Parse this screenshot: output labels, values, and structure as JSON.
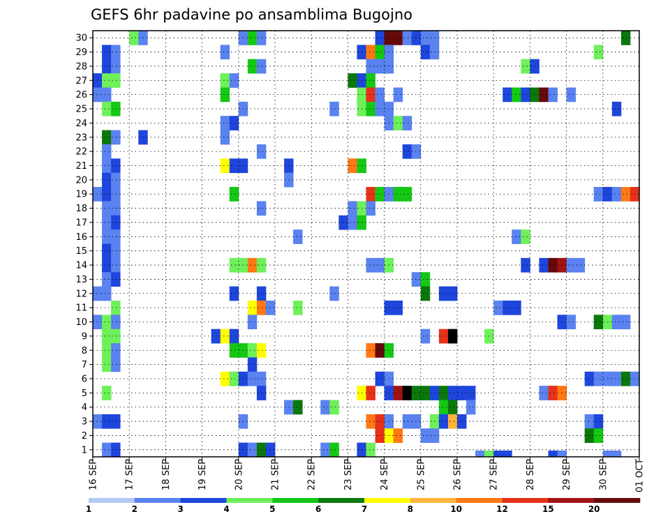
{
  "chart_data": {
    "type": "heatmap",
    "title": "GEFS 6hr padavine po ansamblima Bugojno",
    "xlabel": "",
    "ylabel": "",
    "x_ticks": [
      "16 SEP",
      "17 SEP",
      "18 SEP",
      "19 SEP",
      "20 SEP",
      "21 SEP",
      "22 SEP",
      "23 SEP",
      "24 SEP",
      "25 SEP",
      "26 SEP",
      "27 SEP",
      "28 SEP",
      "29 SEP",
      "30 SEP",
      "01 OCT"
    ],
    "y_ticks": [
      1,
      2,
      3,
      4,
      5,
      6,
      7,
      8,
      9,
      10,
      11,
      12,
      13,
      14,
      15,
      16,
      17,
      18,
      19,
      20,
      21,
      22,
      23,
      24,
      25,
      26,
      27,
      28,
      29,
      30
    ],
    "time_steps_per_day": 4,
    "members": 30,
    "grid": true,
    "colorbar": {
      "bounds": [
        1,
        2,
        3,
        4,
        5,
        6,
        7,
        8,
        10,
        12,
        15,
        20
      ],
      "labels": [
        "1",
        "2",
        "3",
        "4",
        "5",
        "6",
        "7",
        "8",
        "10",
        "12",
        "15",
        "20"
      ],
      "colors": [
        "#b4c8f5",
        "#5a82f0",
        "#1e46dc",
        "#6ef05a",
        "#14c814",
        "#0a780a",
        "#ffff00",
        "#ffb43c",
        "#ff7814",
        "#e63219",
        "#a01414",
        "#640a0a"
      ]
    },
    "cells": [
      [
        30,
        4,
        3
      ],
      [
        30,
        5,
        1
      ],
      [
        30,
        16,
        1
      ],
      [
        30,
        17,
        4
      ],
      [
        30,
        18,
        1
      ],
      [
        30,
        31,
        2
      ],
      [
        30,
        32,
        11
      ],
      [
        30,
        33,
        11
      ],
      [
        30,
        34,
        1
      ],
      [
        30,
        35,
        2
      ],
      [
        30,
        36,
        1
      ],
      [
        30,
        37,
        1
      ],
      [
        30,
        58,
        5
      ],
      [
        29,
        1,
        2
      ],
      [
        29,
        2,
        1
      ],
      [
        29,
        14,
        1
      ],
      [
        29,
        29,
        2
      ],
      [
        29,
        30,
        8
      ],
      [
        29,
        31,
        4
      ],
      [
        29,
        32,
        1
      ],
      [
        29,
        36,
        2
      ],
      [
        29,
        37,
        1
      ],
      [
        29,
        55,
        3
      ],
      [
        28,
        1,
        2
      ],
      [
        28,
        2,
        1
      ],
      [
        28,
        17,
        4
      ],
      [
        28,
        18,
        1
      ],
      [
        28,
        30,
        1
      ],
      [
        28,
        31,
        1
      ],
      [
        28,
        32,
        1
      ],
      [
        28,
        47,
        3
      ],
      [
        28,
        48,
        2
      ],
      [
        27,
        0,
        2
      ],
      [
        27,
        1,
        3
      ],
      [
        27,
        2,
        3
      ],
      [
        27,
        14,
        3
      ],
      [
        27,
        15,
        1
      ],
      [
        27,
        28,
        5
      ],
      [
        27,
        29,
        2
      ],
      [
        27,
        30,
        4
      ],
      [
        26,
        0,
        1
      ],
      [
        26,
        1,
        1
      ],
      [
        26,
        14,
        4
      ],
      [
        26,
        29,
        3
      ],
      [
        26,
        30,
        9
      ],
      [
        26,
        31,
        1
      ],
      [
        26,
        33,
        1
      ],
      [
        26,
        45,
        2
      ],
      [
        26,
        46,
        4
      ],
      [
        26,
        47,
        2
      ],
      [
        26,
        48,
        5
      ],
      [
        26,
        49,
        11
      ],
      [
        26,
        50,
        1
      ],
      [
        26,
        52,
        1
      ],
      [
        25,
        1,
        3
      ],
      [
        25,
        2,
        4
      ],
      [
        25,
        16,
        1
      ],
      [
        25,
        26,
        1
      ],
      [
        25,
        29,
        3
      ],
      [
        25,
        30,
        4
      ],
      [
        25,
        31,
        1
      ],
      [
        25,
        32,
        1
      ],
      [
        25,
        57,
        2
      ],
      [
        24,
        14,
        1
      ],
      [
        24,
        15,
        2
      ],
      [
        24,
        32,
        1
      ],
      [
        24,
        33,
        3
      ],
      [
        24,
        34,
        1
      ],
      [
        23,
        1,
        5
      ],
      [
        23,
        2,
        1
      ],
      [
        23,
        5,
        2
      ],
      [
        23,
        14,
        1
      ],
      [
        22,
        1,
        1
      ],
      [
        22,
        18,
        1
      ],
      [
        22,
        34,
        2
      ],
      [
        22,
        35,
        1
      ],
      [
        21,
        1,
        1
      ],
      [
        21,
        2,
        2
      ],
      [
        21,
        14,
        6
      ],
      [
        21,
        15,
        2
      ],
      [
        21,
        16,
        2
      ],
      [
        21,
        21,
        2
      ],
      [
        21,
        28,
        8
      ],
      [
        21,
        29,
        4
      ],
      [
        20,
        1,
        2
      ],
      [
        20,
        2,
        1
      ],
      [
        20,
        21,
        1
      ],
      [
        19,
        0,
        1
      ],
      [
        19,
        1,
        2
      ],
      [
        19,
        2,
        1
      ],
      [
        19,
        15,
        4
      ],
      [
        19,
        30,
        9
      ],
      [
        19,
        31,
        4
      ],
      [
        19,
        32,
        1
      ],
      [
        19,
        33,
        4
      ],
      [
        19,
        34,
        4
      ],
      [
        19,
        55,
        1
      ],
      [
        19,
        56,
        2
      ],
      [
        19,
        57,
        1
      ],
      [
        19,
        58,
        8
      ],
      [
        19,
        59,
        9
      ],
      [
        18,
        1,
        1
      ],
      [
        18,
        2,
        1
      ],
      [
        18,
        18,
        1
      ],
      [
        18,
        28,
        1
      ],
      [
        18,
        29,
        3
      ],
      [
        18,
        30,
        1
      ],
      [
        17,
        1,
        1
      ],
      [
        17,
        2,
        2
      ],
      [
        17,
        27,
        2
      ],
      [
        17,
        28,
        1
      ],
      [
        17,
        29,
        4
      ],
      [
        16,
        1,
        1
      ],
      [
        16,
        2,
        1
      ],
      [
        16,
        22,
        1
      ],
      [
        16,
        46,
        1
      ],
      [
        16,
        47,
        3
      ],
      [
        15,
        1,
        2
      ],
      [
        15,
        2,
        1
      ],
      [
        14,
        1,
        2
      ],
      [
        14,
        2,
        1
      ],
      [
        14,
        15,
        3
      ],
      [
        14,
        16,
        3
      ],
      [
        14,
        17,
        8
      ],
      [
        14,
        18,
        3
      ],
      [
        14,
        30,
        1
      ],
      [
        14,
        31,
        1
      ],
      [
        14,
        32,
        3
      ],
      [
        14,
        47,
        2
      ],
      [
        14,
        49,
        2
      ],
      [
        14,
        50,
        11
      ],
      [
        14,
        51,
        10
      ],
      [
        14,
        52,
        1
      ],
      [
        14,
        53,
        1
      ],
      [
        13,
        1,
        1
      ],
      [
        13,
        2,
        2
      ],
      [
        13,
        35,
        1
      ],
      [
        13,
        36,
        4
      ],
      [
        12,
        0,
        1
      ],
      [
        12,
        1,
        1
      ],
      [
        12,
        15,
        2
      ],
      [
        12,
        18,
        2
      ],
      [
        12,
        26,
        1
      ],
      [
        12,
        36,
        5
      ],
      [
        12,
        38,
        2
      ],
      [
        12,
        39,
        2
      ],
      [
        11,
        2,
        3
      ],
      [
        11,
        17,
        6
      ],
      [
        11,
        18,
        8
      ],
      [
        11,
        19,
        1
      ],
      [
        11,
        22,
        3
      ],
      [
        11,
        32,
        2
      ],
      [
        11,
        33,
        2
      ],
      [
        11,
        44,
        1
      ],
      [
        11,
        45,
        2
      ],
      [
        11,
        46,
        2
      ],
      [
        10,
        0,
        1
      ],
      [
        10,
        1,
        3
      ],
      [
        10,
        2,
        1
      ],
      [
        10,
        17,
        1
      ],
      [
        10,
        51,
        2
      ],
      [
        10,
        52,
        1
      ],
      [
        10,
        55,
        5
      ],
      [
        10,
        56,
        3
      ],
      [
        10,
        57,
        1
      ],
      [
        10,
        58,
        1
      ],
      [
        9,
        1,
        3
      ],
      [
        9,
        2,
        3
      ],
      [
        9,
        13,
        2
      ],
      [
        9,
        14,
        6
      ],
      [
        9,
        15,
        2
      ],
      [
        9,
        36,
        1
      ],
      [
        9,
        38,
        9
      ],
      [
        9,
        39,
        12
      ],
      [
        9,
        43,
        3
      ],
      [
        8,
        1,
        3
      ],
      [
        8,
        2,
        1
      ],
      [
        8,
        15,
        4
      ],
      [
        8,
        16,
        4
      ],
      [
        8,
        17,
        3
      ],
      [
        8,
        18,
        6
      ],
      [
        8,
        30,
        8
      ],
      [
        8,
        31,
        11
      ],
      [
        8,
        32,
        4
      ],
      [
        7,
        1,
        3
      ],
      [
        7,
        2,
        1
      ],
      [
        7,
        17,
        2
      ],
      [
        6,
        14,
        6
      ],
      [
        6,
        15,
        3
      ],
      [
        6,
        16,
        2
      ],
      [
        6,
        17,
        1
      ],
      [
        6,
        18,
        1
      ],
      [
        6,
        31,
        2
      ],
      [
        6,
        32,
        1
      ],
      [
        6,
        54,
        2
      ],
      [
        6,
        55,
        1
      ],
      [
        6,
        56,
        1
      ],
      [
        6,
        57,
        1
      ],
      [
        6,
        58,
        5
      ],
      [
        6,
        59,
        1
      ],
      [
        5,
        1,
        3
      ],
      [
        5,
        18,
        2
      ],
      [
        5,
        29,
        6
      ],
      [
        5,
        30,
        9
      ],
      [
        5,
        32,
        2
      ],
      [
        5,
        33,
        10
      ],
      [
        5,
        34,
        12
      ],
      [
        5,
        35,
        5
      ],
      [
        5,
        36,
        5
      ],
      [
        5,
        37,
        2
      ],
      [
        5,
        38,
        5
      ],
      [
        5,
        39,
        2
      ],
      [
        5,
        40,
        2
      ],
      [
        5,
        41,
        2
      ],
      [
        5,
        49,
        1
      ],
      [
        5,
        50,
        9
      ],
      [
        5,
        51,
        8
      ],
      [
        4,
        21,
        1
      ],
      [
        4,
        22,
        5
      ],
      [
        4,
        25,
        1
      ],
      [
        4,
        26,
        3
      ],
      [
        4,
        38,
        4
      ],
      [
        4,
        39,
        5
      ],
      [
        4,
        41,
        1
      ],
      [
        3,
        0,
        1
      ],
      [
        3,
        1,
        2
      ],
      [
        3,
        2,
        2
      ],
      [
        3,
        16,
        1
      ],
      [
        3,
        30,
        8
      ],
      [
        3,
        31,
        9
      ],
      [
        3,
        32,
        1
      ],
      [
        3,
        34,
        1
      ],
      [
        3,
        35,
        1
      ],
      [
        3,
        37,
        3
      ],
      [
        3,
        38,
        2
      ],
      [
        3,
        39,
        7
      ],
      [
        3,
        40,
        2
      ],
      [
        3,
        54,
        1
      ],
      [
        3,
        55,
        2
      ],
      [
        2,
        31,
        9
      ],
      [
        2,
        32,
        6
      ],
      [
        2,
        33,
        8
      ],
      [
        2,
        36,
        1
      ],
      [
        2,
        37,
        1
      ],
      [
        2,
        54,
        5
      ],
      [
        2,
        55,
        4
      ],
      [
        1,
        1,
        1
      ],
      [
        1,
        2,
        2
      ],
      [
        1,
        16,
        2
      ],
      [
        1,
        17,
        1
      ],
      [
        1,
        18,
        5
      ],
      [
        1,
        19,
        2
      ],
      [
        1,
        25,
        1
      ],
      [
        1,
        26,
        4
      ],
      [
        1,
        29,
        2
      ],
      [
        1,
        30,
        3
      ]
    ],
    "below_axis_cells": [
      [
        42,
        1
      ],
      [
        43,
        3
      ],
      [
        44,
        2
      ],
      [
        45,
        2
      ],
      [
        50,
        2
      ],
      [
        51,
        1
      ],
      [
        56,
        1
      ],
      [
        57,
        1
      ]
    ]
  }
}
